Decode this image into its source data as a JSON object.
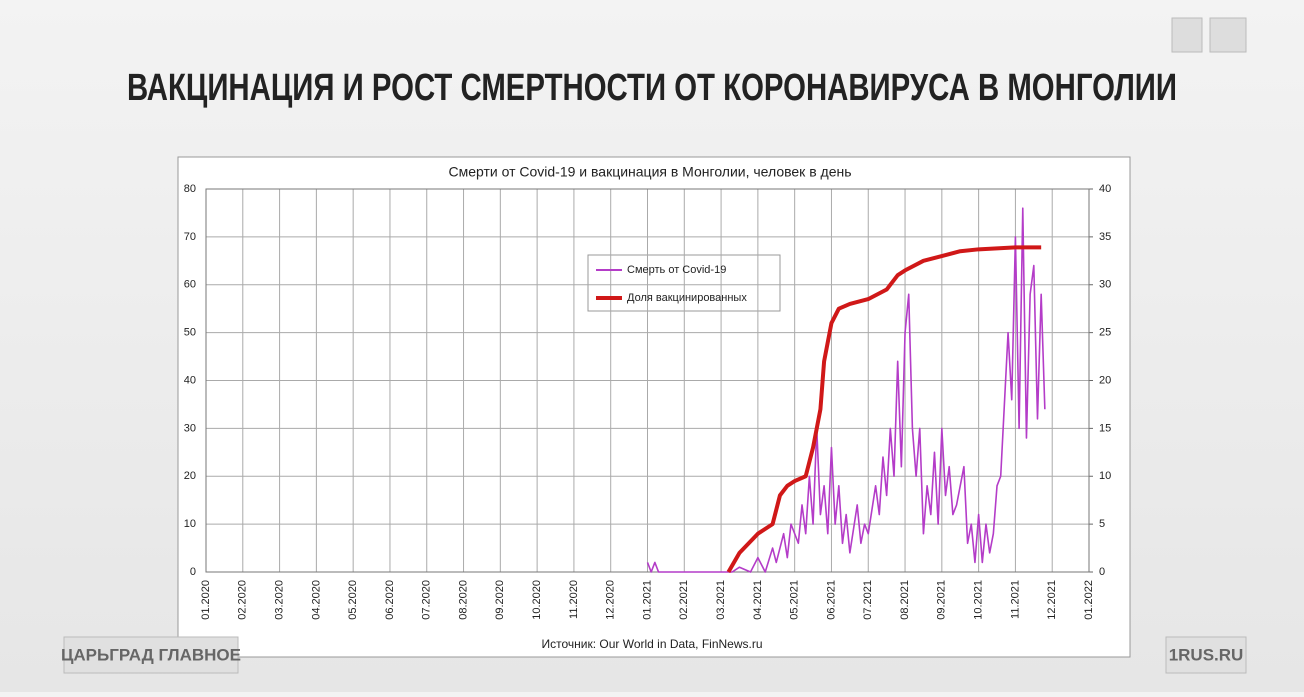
{
  "header": {
    "title": "ВАКЦИНАЦИЯ И РОСТ СМЕРТНОСТИ ОТ КОРОНАВИРУСА В МОНГОЛИИ",
    "brand_left": "ЦАРЬГРАД ГЛАВНОЕ",
    "brand_right": "1RUS.RU"
  },
  "chart_data": {
    "type": "line",
    "title": "Смерти от Covid-19 и вакцинация в Монголии, человек в день",
    "source": "Источник: Our World in Data, FinNews.ru",
    "xlim": [
      0,
      24
    ],
    "xticks": [
      {
        "value": 0,
        "label": "01.2020"
      },
      {
        "value": 1,
        "label": "02.2020"
      },
      {
        "value": 2,
        "label": "03.2020"
      },
      {
        "value": 3,
        "label": "04.2020"
      },
      {
        "value": 4,
        "label": "05.2020"
      },
      {
        "value": 5,
        "label": "06.2020"
      },
      {
        "value": 6,
        "label": "07.2020"
      },
      {
        "value": 7,
        "label": "08.2020"
      },
      {
        "value": 8,
        "label": "09.2020"
      },
      {
        "value": 9,
        "label": "10.2020"
      },
      {
        "value": 10,
        "label": "11.2020"
      },
      {
        "value": 11,
        "label": "12.2020"
      },
      {
        "value": 12,
        "label": "01.2021"
      },
      {
        "value": 13,
        "label": "02.2021"
      },
      {
        "value": 14,
        "label": "03.2021"
      },
      {
        "value": 15,
        "label": "04.2021"
      },
      {
        "value": 16,
        "label": "05.2021"
      },
      {
        "value": 17,
        "label": "06.2021"
      },
      {
        "value": 18,
        "label": "07.2021"
      },
      {
        "value": 19,
        "label": "08.2021"
      },
      {
        "value": 20,
        "label": "09.2021"
      },
      {
        "value": 21,
        "label": "10.2021"
      },
      {
        "value": 22,
        "label": "11.2021"
      },
      {
        "value": 23,
        "label": "12.2021"
      },
      {
        "value": 24,
        "label": "01.2022"
      }
    ],
    "ylim": [
      0,
      80
    ],
    "yticks": [
      0,
      10,
      20,
      30,
      40,
      50,
      60,
      70,
      80
    ],
    "y2lim": [
      0,
      40
    ],
    "y2ticks": [
      0,
      5,
      10,
      15,
      20,
      25,
      30,
      35,
      40
    ],
    "grid": true,
    "series": [
      {
        "name": "Смерть от Covid-19",
        "color": "#b43cc8",
        "axis": "y",
        "x": [
          12.0,
          12.1,
          12.2,
          12.3,
          14.0,
          14.3,
          14.5,
          14.8,
          15.0,
          15.2,
          15.4,
          15.5,
          15.7,
          15.8,
          15.9,
          16.1,
          16.2,
          16.3,
          16.4,
          16.5,
          16.6,
          16.7,
          16.8,
          16.9,
          17.0,
          17.1,
          17.2,
          17.3,
          17.4,
          17.5,
          17.7,
          17.8,
          17.9,
          18.0,
          18.2,
          18.3,
          18.4,
          18.5,
          18.6,
          18.7,
          18.8,
          18.9,
          19.0,
          19.1,
          19.2,
          19.3,
          19.4,
          19.5,
          19.6,
          19.7,
          19.8,
          19.9,
          20.0,
          20.1,
          20.2,
          20.3,
          20.4,
          20.6,
          20.7,
          20.8,
          20.9,
          21.0,
          21.1,
          21.2,
          21.3,
          21.4,
          21.5,
          21.6,
          21.7,
          21.8,
          21.9,
          22.0,
          22.1,
          22.2,
          22.3,
          22.4,
          22.5,
          22.6,
          22.7,
          22.8
        ],
        "values": [
          2,
          0,
          2,
          0,
          0,
          0,
          1,
          0,
          3,
          0,
          5,
          2,
          8,
          3,
          10,
          6,
          14,
          8,
          20,
          10,
          30,
          12,
          18,
          8,
          26,
          10,
          18,
          6,
          12,
          4,
          14,
          6,
          10,
          8,
          18,
          12,
          24,
          16,
          30,
          20,
          44,
          22,
          50,
          58,
          30,
          20,
          30,
          8,
          18,
          12,
          25,
          10,
          30,
          16,
          22,
          12,
          14,
          22,
          6,
          10,
          2,
          12,
          2,
          10,
          4,
          8,
          18,
          20,
          35,
          50,
          36,
          70,
          30,
          76,
          28,
          58,
          64,
          32,
          58,
          34
        ]
      },
      {
        "name": "Доля вакцинированных",
        "color": "#d01818",
        "axis": "y2",
        "x": [
          14.2,
          14.5,
          15.0,
          15.4,
          15.6,
          15.8,
          16.0,
          16.3,
          16.5,
          16.7,
          16.8,
          17.0,
          17.2,
          17.5,
          18.0,
          18.5,
          18.8,
          19.0,
          19.5,
          20.0,
          20.5,
          21.0,
          21.5,
          22.0,
          22.7
        ],
        "values": [
          0,
          2,
          4,
          5,
          8,
          9,
          9.5,
          10,
          13,
          17,
          22,
          26,
          27.5,
          28,
          28.5,
          29.5,
          31,
          31.5,
          32.5,
          33,
          33.5,
          33.7,
          33.8,
          33.9,
          33.9
        ]
      }
    ]
  }
}
